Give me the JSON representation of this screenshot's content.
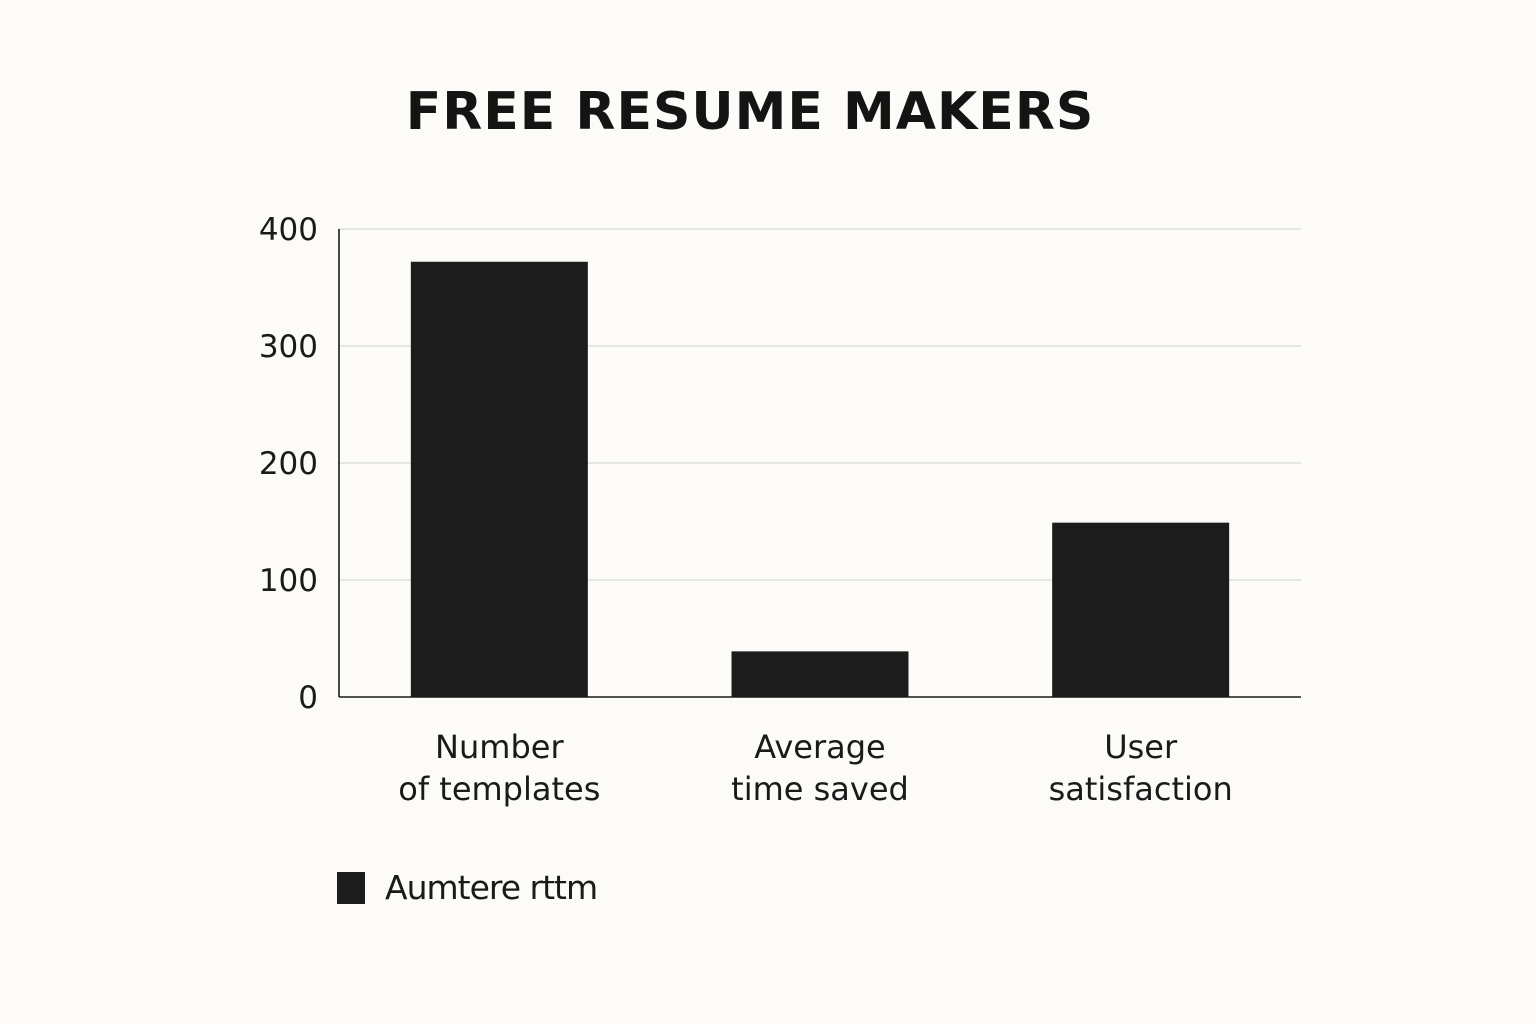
{
  "chart_data": {
    "type": "bar",
    "title": "FREE RESUME MAKERS",
    "xlabel": "",
    "ylabel": "",
    "categories": [
      [
        "Number",
        "of templates"
      ],
      [
        "Average",
        "time saved"
      ],
      [
        "User",
        "satisfaction"
      ]
    ],
    "series": [
      {
        "name": "Aumtere rttm",
        "values": [
          372,
          39,
          149
        ]
      }
    ],
    "ylim": [
      0,
      400
    ],
    "yticks": [
      0,
      100,
      200,
      300,
      400
    ],
    "grid": true,
    "legend": "bottom-left",
    "colors": {
      "bar": "#1c1c1c",
      "grid": "#d9d9d6",
      "axis": "#1a1a1a",
      "background": "#fcfbf7"
    }
  }
}
